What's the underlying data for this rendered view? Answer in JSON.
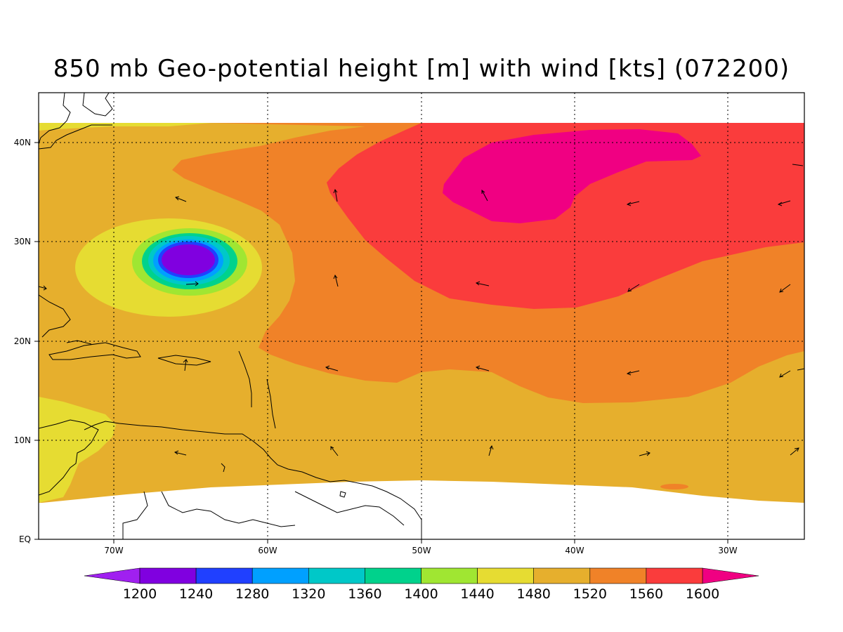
{
  "title": "850 mb Geo-potential height [m] with wind [kts] (072200)",
  "lat_labels": [
    "EQ",
    "10N",
    "20N",
    "30N",
    "40N"
  ],
  "lon_labels": [
    "70W",
    "60W",
    "50W",
    "40W",
    "30W"
  ],
  "colorbar": {
    "labels": [
      "1200",
      "1240",
      "1280",
      "1320",
      "1360",
      "1400",
      "1440",
      "1480",
      "1520",
      "1560",
      "1600"
    ],
    "colors": [
      "#a020f0",
      "#8000e0",
      "#2040ff",
      "#00a0ff",
      "#00c8c8",
      "#00d28c",
      "#a0e632",
      "#e6dc32",
      "#e6af2d",
      "#f08228",
      "#fa3c3c",
      "#f00082"
    ],
    "under_color": "#a020f0",
    "over_color": "#f00082"
  },
  "fill_colors": {
    "c1480": "#e6dc32",
    "c1520": "#e6af2d",
    "c1560": "#f08228",
    "c1600": "#fa3c3c",
    "c1640": "#f00082",
    "low_1440": "#a0e632",
    "low_1400": "#00d28c",
    "low_1360": "#00c8c8",
    "low_1320": "#00a0ff",
    "low_1280": "#2040ff",
    "low_1240": "#8000e0"
  }
}
